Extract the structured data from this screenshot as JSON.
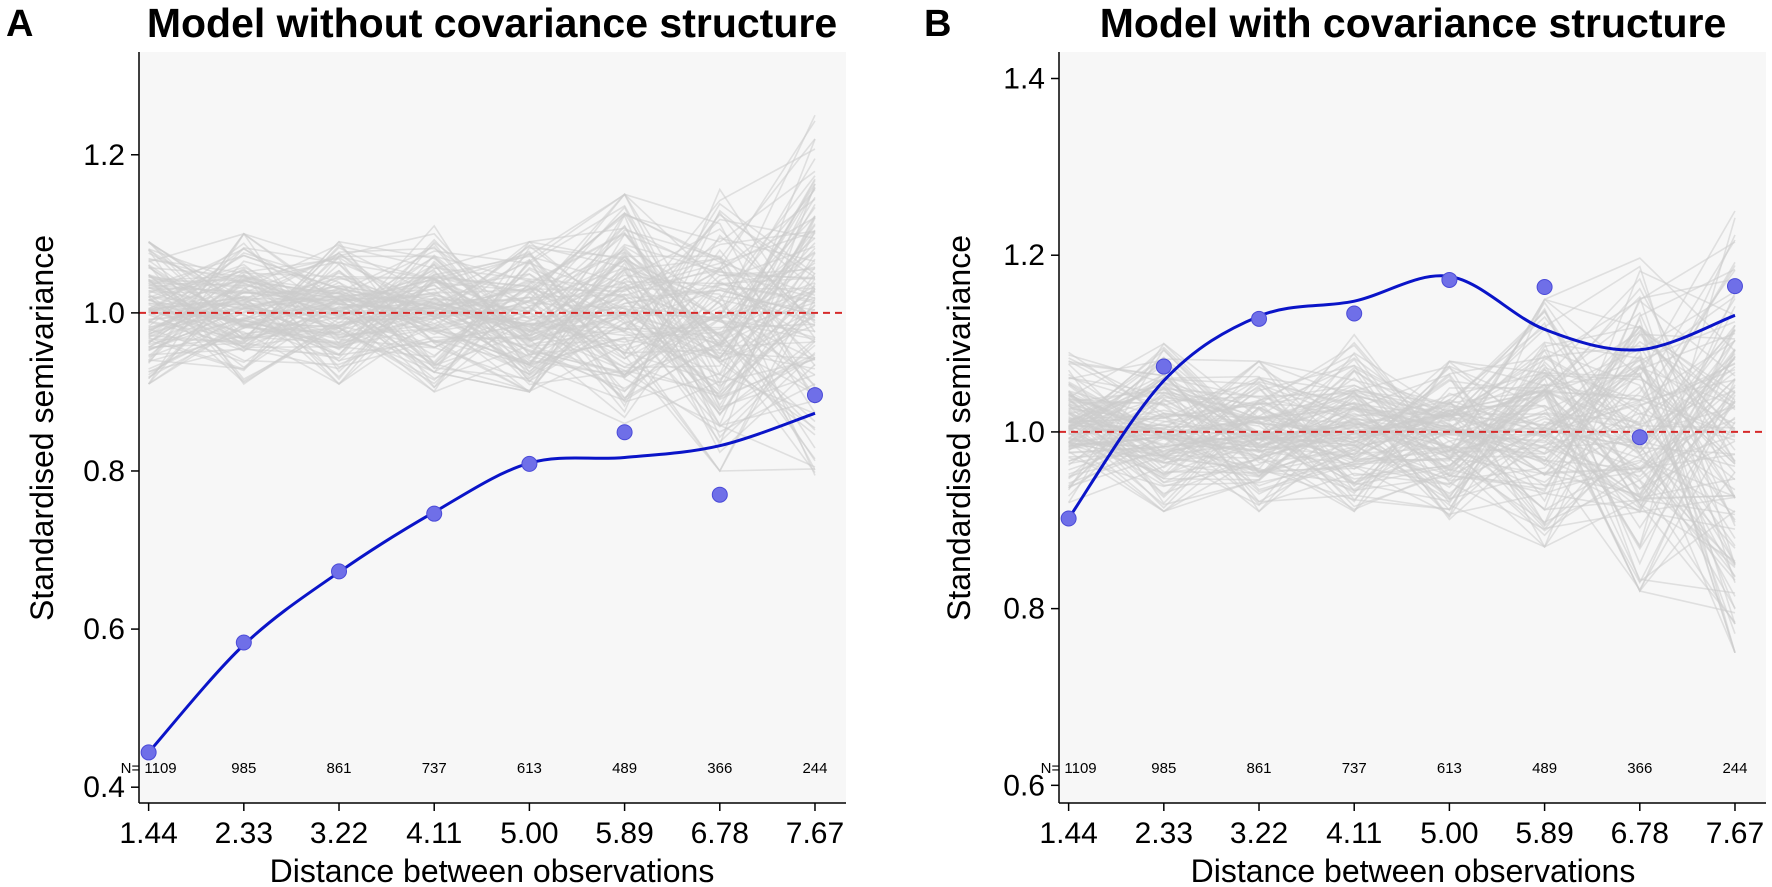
{
  "chart_data": [
    {
      "panel": "A",
      "type": "line",
      "title": "Model without covariance structure",
      "xlabel": "Distance between observations",
      "ylabel": "Standardised semivariance",
      "categories": [
        "1.44",
        "2.33",
        "3.22",
        "4.11",
        "5.00",
        "5.89",
        "6.78",
        "7.67"
      ],
      "x": [
        1.44,
        2.33,
        3.22,
        4.11,
        5.0,
        5.89,
        6.78,
        7.67
      ],
      "xlim": [
        1.35,
        7.96
      ],
      "ylim": [
        0.38,
        1.33
      ],
      "yticks": [
        0.4,
        0.6,
        0.8,
        1.0,
        1.2
      ],
      "ytick_labels": [
        "0.4",
        "0.6",
        "0.8",
        "1.0",
        "1.2"
      ],
      "reference_line": 1.0,
      "n_labels": [
        "N= 1109",
        "985",
        "861",
        "737",
        "613",
        "489",
        "366",
        "244"
      ],
      "envelope": {
        "lower": [
          0.91,
          0.91,
          0.91,
          0.9,
          0.9,
          0.86,
          0.8,
          0.78
        ],
        "upper": [
          1.09,
          1.1,
          1.09,
          1.11,
          1.09,
          1.15,
          1.18,
          1.25
        ]
      },
      "series": [
        {
          "name": "observed",
          "values": [
            0.444,
            0.583,
            0.673,
            0.746,
            0.809,
            0.849,
            0.77,
            0.896
          ]
        },
        {
          "name": "smooth",
          "values": [
            0.444,
            0.58,
            0.672,
            0.748,
            0.81,
            0.817,
            0.832,
            0.873
          ]
        }
      ],
      "colors": {
        "points": "#6f6fe8",
        "smooth": "#0a14c8",
        "reference": "#d62a2a",
        "envelope": "#cccccc",
        "panel": "#f7f7f7"
      }
    },
    {
      "panel": "B",
      "type": "line",
      "title": "Model with covariance structure",
      "xlabel": "Distance between observations",
      "ylabel": "Standardised semivariance",
      "categories": [
        "1.44",
        "2.33",
        "3.22",
        "4.11",
        "5.00",
        "5.89",
        "6.78",
        "7.67"
      ],
      "x": [
        1.44,
        2.33,
        3.22,
        4.11,
        5.0,
        5.89,
        6.78,
        7.67
      ],
      "xlim": [
        1.35,
        7.96
      ],
      "ylim": [
        0.58,
        1.43
      ],
      "yticks": [
        0.6,
        0.8,
        1.0,
        1.2,
        1.4
      ],
      "ytick_labels": [
        "0.6",
        "0.8",
        "1.0",
        "1.2",
        "1.4"
      ],
      "reference_line": 1.0,
      "n_labels": [
        "N= 1109",
        "985",
        "861",
        "737",
        "613",
        "489",
        "366",
        "244"
      ],
      "envelope": {
        "lower": [
          0.92,
          0.91,
          0.91,
          0.91,
          0.9,
          0.87,
          0.82,
          0.75
        ],
        "upper": [
          1.09,
          1.1,
          1.08,
          1.11,
          1.08,
          1.15,
          1.2,
          1.25
        ]
      },
      "series": [
        {
          "name": "observed",
          "values": [
            0.902,
            1.074,
            1.128,
            1.134,
            1.172,
            1.164,
            0.994,
            1.165
          ]
        },
        {
          "name": "smooth",
          "values": [
            0.902,
            1.058,
            1.131,
            1.148,
            1.176,
            1.116,
            1.093,
            1.132
          ]
        }
      ],
      "colors": {
        "points": "#6f6fe8",
        "smooth": "#0a14c8",
        "reference": "#d62a2a",
        "envelope": "#cccccc",
        "panel": "#f7f7f7"
      }
    }
  ]
}
